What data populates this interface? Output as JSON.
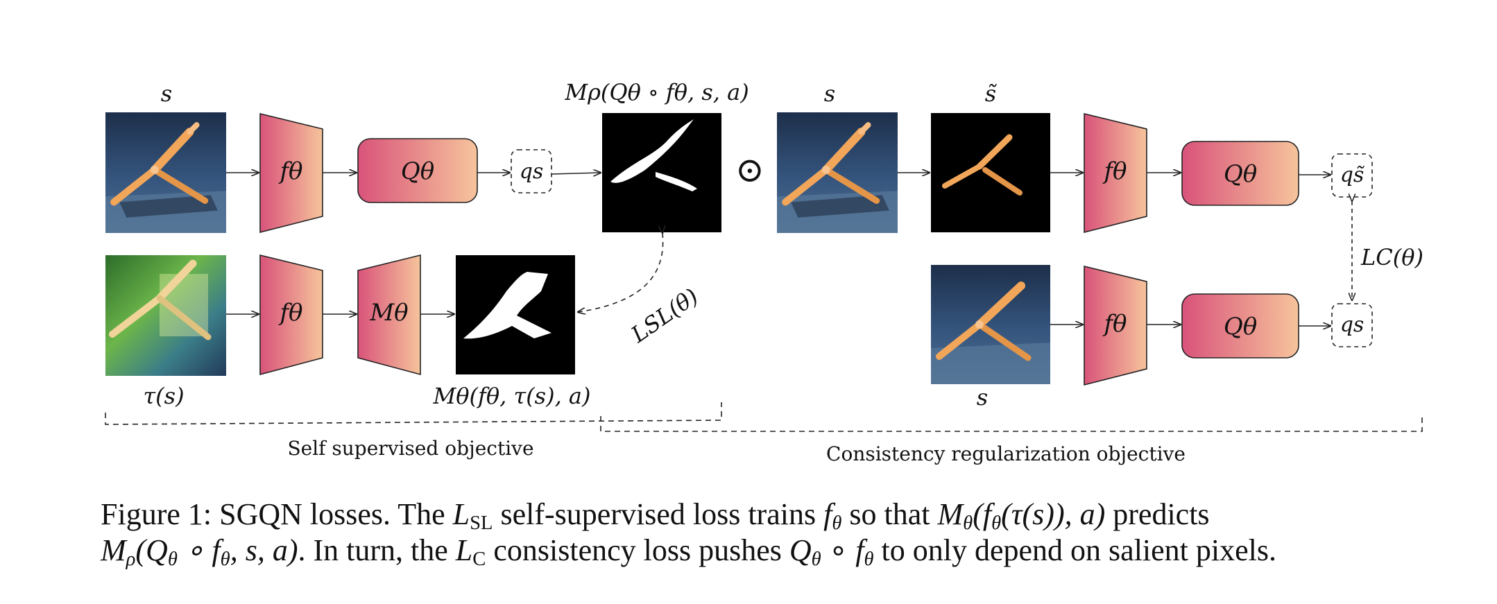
{
  "figure": {
    "top_row": {
      "s_label": "s",
      "f_label": "fθ",
      "q_label": "Qθ",
      "qs_label": "qs",
      "mask_label": "Mρ(Qθ ∘ fθ, s, a)",
      "odot": "⊙"
    },
    "bottom_left_row": {
      "tau_label": "τ(s)",
      "f_label": "fθ",
      "m_label": "Mθ",
      "pred_label": "Mθ(fθ, τ(s), a)",
      "loss_label": "LSL(θ)"
    },
    "right_section": {
      "s_label": "s",
      "stilde_label": "s̃",
      "f_label": "fθ",
      "q_label": "Qθ",
      "qstilde_label": "qs̃",
      "s_bottom_label": "s",
      "qs_label": "qs",
      "lc_label": "LC(θ)"
    },
    "brackets": {
      "self_supervised": "Self supervised objective",
      "consistency": "Consistency regularization objective"
    },
    "colors": {
      "gradient_start": "#d9537a",
      "gradient_end": "#f6c49c",
      "stroke": "#222222",
      "sky_blue": "#2f4a6e",
      "robot_orange": "#f2a65a"
    }
  },
  "caption": {
    "line1_prefix": "Figure 1: SGQN losses. The ",
    "line1_lsl": "L",
    "line1_lsl_sub": "SL",
    "line1_mid": " self-supervised loss trains ",
    "line1_f": "f",
    "line1_f_sub": "θ",
    "line1_mid2": " so that ",
    "line1_expr": "M",
    "line1_expr_sub": "θ",
    "line1_expr_rest": "(f",
    "line1_expr_rest_sub": "θ",
    "line1_expr_tail": "(τ(s)), a)",
    "line1_suffix": " predicts",
    "line2_expr": "M",
    "line2_expr_sub": "ρ",
    "line2_expr_rest": "(Q",
    "line2_expr_rest_sub": "θ",
    "line2_expr_mid": " ∘ f",
    "line2_expr_mid_sub": "θ",
    "line2_expr_tail": ", s, a)",
    "line2_mid": ". In turn, the ",
    "line2_lc": "L",
    "line2_lc_sub": "C",
    "line2_mid2": " consistency loss pushes ",
    "line2_q": "Q",
    "line2_q_sub": "θ",
    "line2_circ": " ∘ ",
    "line2_f": "f",
    "line2_f_sub": "θ",
    "line2_suffix": " to only depend on salient pixels."
  }
}
